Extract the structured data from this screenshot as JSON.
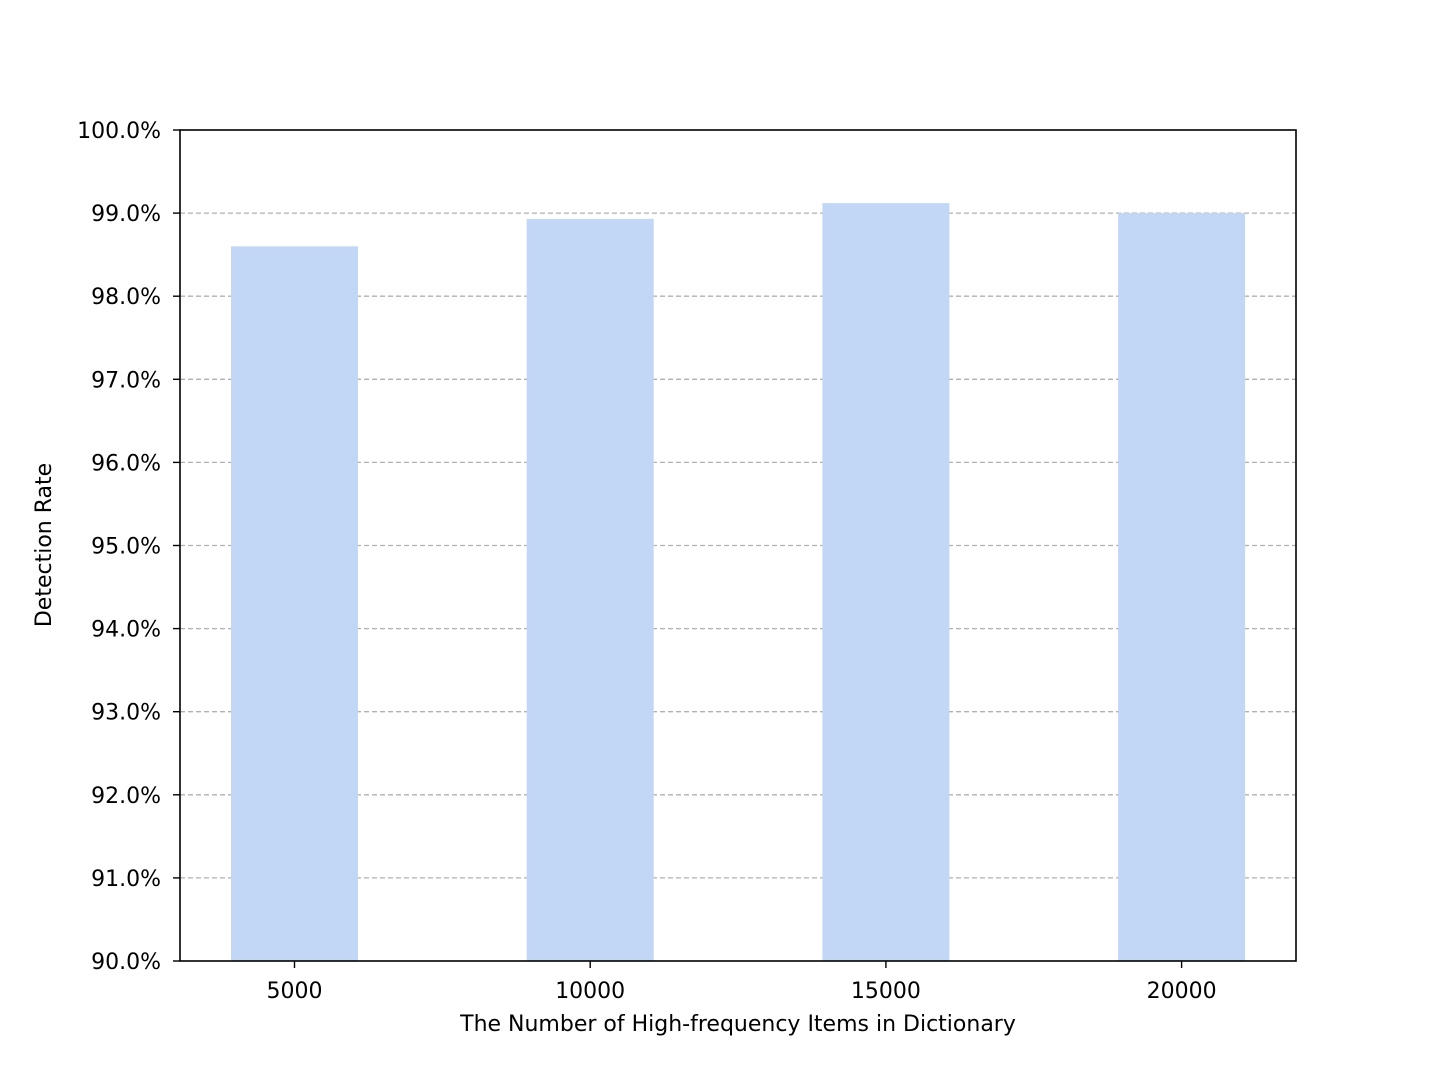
{
  "chart_data": {
    "type": "bar",
    "categories": [
      "5000",
      "10000",
      "15000",
      "20000"
    ],
    "values": [
      98.6,
      98.93,
      99.12,
      99.0
    ],
    "title": "",
    "xlabel": "The Number of High-frequency Items in Dictionary",
    "ylabel": "Detection Rate",
    "ylim": [
      90.0,
      100.0
    ],
    "y_ticks": [
      90.0,
      91.0,
      92.0,
      93.0,
      94.0,
      95.0,
      96.0,
      97.0,
      98.0,
      99.0,
      100.0
    ],
    "y_tick_labels": [
      "90.0%",
      "91.0%",
      "92.0%",
      "93.0%",
      "94.0%",
      "95.0%",
      "96.0%",
      "97.0%",
      "98.0%",
      "99.0%",
      "100.0%"
    ],
    "grid": "horizontal dashed",
    "legend": "none",
    "colors": {
      "bar": "#c2d6f5",
      "grid": "#b0b0b0",
      "axes": "#000000"
    }
  }
}
